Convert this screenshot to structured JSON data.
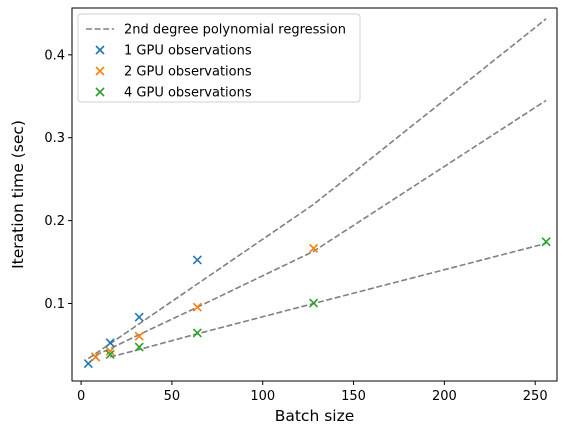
{
  "chart_data": {
    "type": "scatter",
    "title": "",
    "xlabel": "Batch size",
    "ylabel": "Iteration time (sec)",
    "xlim": [
      -5,
      262
    ],
    "ylim": [
      0.0065,
      0.4565
    ],
    "xticks": [
      0,
      50,
      100,
      150,
      200,
      250
    ],
    "yticks": [
      0.1,
      0.2,
      0.3,
      0.4
    ],
    "xtick_labels": [
      "0",
      "50",
      "100",
      "150",
      "200",
      "250"
    ],
    "ytick_labels": [
      "0.1",
      "0.2",
      "0.3",
      "0.4"
    ],
    "grid": false,
    "legend_position": "top-left",
    "series": [
      {
        "name": "2nd degree polynomial regression",
        "kind": "line",
        "color": "#808080",
        "lines": [
          {
            "x": [
              4,
              8,
              16,
              32,
              64,
              128,
              256
            ],
            "y": [
              0.0335,
              0.0395,
              0.0515,
              0.0755,
              0.1235,
              0.2195,
              0.4435
            ]
          },
          {
            "x": [
              8,
              16,
              32,
              64,
              128,
              256
            ],
            "y": [
              0.0375,
              0.0455,
              0.0625,
              0.0955,
              0.163,
              0.345
            ]
          },
          {
            "x": [
              16,
              32,
              64,
              128,
              256
            ],
            "y": [
              0.0355,
              0.0445,
              0.0635,
              0.1,
              0.1725
            ]
          }
        ]
      },
      {
        "name": "1 GPU observations",
        "kind": "scatter",
        "color": "#1f77b4",
        "x": [
          4,
          8,
          16,
          32,
          64
        ],
        "y": [
          0.0275,
          0.0355,
          0.0525,
          0.0835,
          0.1525
        ]
      },
      {
        "name": "2 GPU observations",
        "kind": "scatter",
        "color": "#ff7f0e",
        "x": [
          8,
          16,
          32,
          64,
          128
        ],
        "y": [
          0.0355,
          0.0425,
          0.0605,
          0.0955,
          0.1665
        ]
      },
      {
        "name": "4 GPU observations",
        "kind": "scatter",
        "color": "#2ca02c",
        "x": [
          16,
          32,
          64,
          128,
          256
        ],
        "y": [
          0.0385,
          0.0475,
          0.0645,
          0.1005,
          0.1745
        ]
      }
    ]
  }
}
